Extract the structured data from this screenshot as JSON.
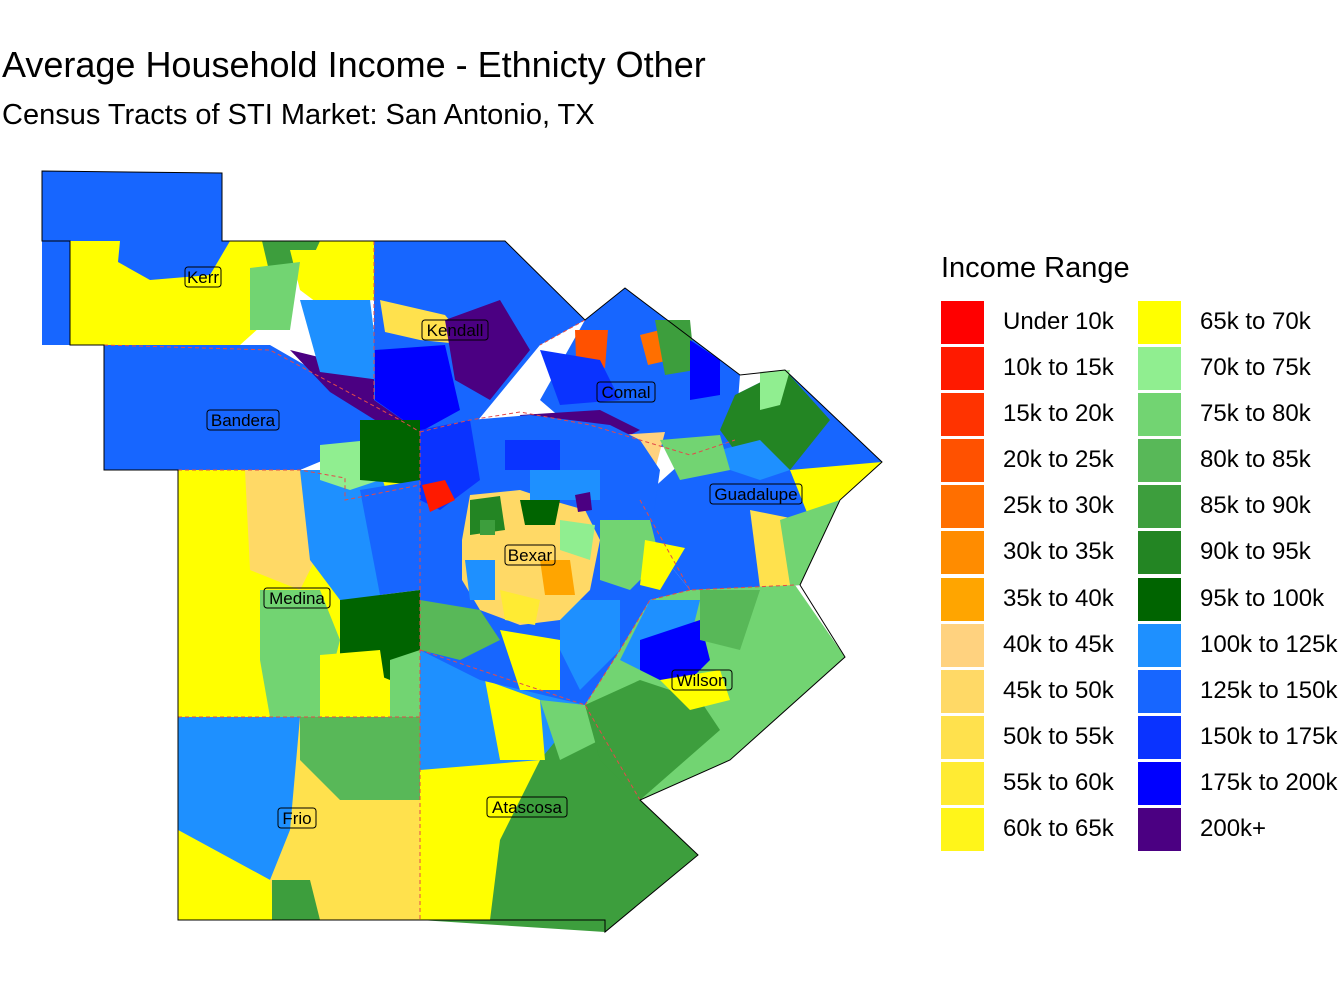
{
  "title": "Average Household Income - Ethnicty Other",
  "subtitle": "Census Tracts of STI Market: San Antonio, TX",
  "legend": {
    "title": "Income Range",
    "items": [
      {
        "label": "Under 10k",
        "color": "#ff0000"
      },
      {
        "label": "10k to 15k",
        "color": "#ff1a00"
      },
      {
        "label": "15k to 20k",
        "color": "#ff3300"
      },
      {
        "label": "20k to 25k",
        "color": "#ff5100"
      },
      {
        "label": "25k to 30k",
        "color": "#ff6f00"
      },
      {
        "label": "30k to 35k",
        "color": "#ff8c00"
      },
      {
        "label": "35k to 40k",
        "color": "#ffa500"
      },
      {
        "label": "40k to 45k",
        "color": "#ffd27f"
      },
      {
        "label": "45k to 50k",
        "color": "#ffd966"
      },
      {
        "label": "50k to 55k",
        "color": "#ffe14d"
      },
      {
        "label": "55k to 60k",
        "color": "#ffeb33"
      },
      {
        "label": "60k to 65k",
        "color": "#fff51a"
      },
      {
        "label": "65k to 70k",
        "color": "#ffff00"
      },
      {
        "label": "70k to 75k",
        "color": "#90ee90"
      },
      {
        "label": "75k to 80k",
        "color": "#72d472"
      },
      {
        "label": "80k to 85k",
        "color": "#58b858"
      },
      {
        "label": "85k to 90k",
        "color": "#3d9e3d"
      },
      {
        "label": "90k to 95k",
        "color": "#238523"
      },
      {
        "label": "95k to 100k",
        "color": "#006400"
      },
      {
        "label": "100k to 125k",
        "color": "#1e90ff"
      },
      {
        "label": "125k to 150k",
        "color": "#1766ff"
      },
      {
        "label": "150k to 175k",
        "color": "#0a33ff"
      },
      {
        "label": "175k to 200k",
        "color": "#0000ff"
      },
      {
        "label": "200k+",
        "color": "#4b0082"
      }
    ]
  },
  "counties": [
    "Kerr",
    "Kendall",
    "Comal",
    "Bandera",
    "Guadalupe",
    "Bexar",
    "Medina",
    "Wilson",
    "Frio",
    "Atascosa"
  ]
}
